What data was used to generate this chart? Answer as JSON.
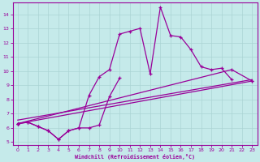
{
  "xlabel": "Windchill (Refroidissement éolien,°C)",
  "background_color": "#c5eaea",
  "line_color": "#990099",
  "xlim": [
    -0.5,
    23.5
  ],
  "ylim": [
    4.8,
    14.8
  ],
  "yticks": [
    5,
    6,
    7,
    8,
    9,
    10,
    11,
    12,
    13,
    14
  ],
  "xticks": [
    0,
    1,
    2,
    3,
    4,
    5,
    6,
    7,
    8,
    9,
    10,
    11,
    12,
    13,
    14,
    15,
    16,
    17,
    18,
    19,
    20,
    21,
    22,
    23
  ],
  "grid_color": "#aad4d4",
  "series1_x": [
    0,
    1,
    2,
    3,
    4,
    5,
    6,
    7,
    8,
    9,
    10,
    11,
    12,
    13,
    14,
    15,
    16,
    17,
    18,
    19,
    20,
    21
  ],
  "series1_y": [
    6.3,
    6.4,
    6.1,
    5.8,
    5.2,
    5.8,
    6.0,
    8.3,
    9.6,
    10.1,
    12.6,
    12.8,
    13.0,
    9.8,
    14.5,
    12.5,
    12.4,
    11.5,
    10.3,
    10.1,
    10.2,
    9.4
  ],
  "series2_x": [
    0,
    1,
    2,
    3,
    4,
    5,
    6,
    7,
    8,
    9,
    10
  ],
  "series2_y": [
    6.3,
    6.4,
    6.1,
    5.8,
    5.2,
    5.8,
    6.0,
    6.0,
    6.2,
    8.2,
    9.5
  ],
  "series3_x": [
    0,
    23
  ],
  "series3_y": [
    6.3,
    9.3
  ],
  "series4_x": [
    0,
    21,
    23
  ],
  "series4_y": [
    6.3,
    10.1,
    9.3
  ],
  "series5_x": [
    0,
    23
  ],
  "series5_y": [
    6.55,
    9.4
  ]
}
